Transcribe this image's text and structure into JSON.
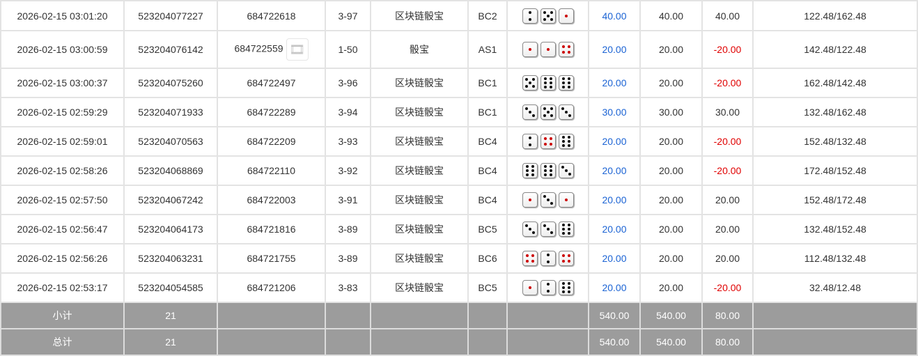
{
  "rows": [
    {
      "time": "2026-02-15 03:01:20",
      "order": "523204077227",
      "issue": "684722618",
      "odds": "3-97",
      "game": "区块链骰宝",
      "table": "BC2",
      "dice": [
        2,
        5,
        1
      ],
      "bet": "40.00",
      "valid": "40.00",
      "win": "40.00",
      "balance": "122.48/162.48",
      "has_video": false
    },
    {
      "time": "2026-02-15 03:00:59",
      "order": "523204076142",
      "issue": "684722559",
      "odds": "1-50",
      "game": "骰宝",
      "table": "AS1",
      "dice": [
        1,
        1,
        4
      ],
      "bet": "20.00",
      "valid": "20.00",
      "win": "-20.00",
      "balance": "142.48/122.48",
      "has_video": true
    },
    {
      "time": "2026-02-15 03:00:37",
      "order": "523204075260",
      "issue": "684722497",
      "odds": "3-96",
      "game": "区块链骰宝",
      "table": "BC1",
      "dice": [
        5,
        6,
        6
      ],
      "bet": "20.00",
      "valid": "20.00",
      "win": "-20.00",
      "balance": "162.48/142.48",
      "has_video": false
    },
    {
      "time": "2026-02-15 02:59:29",
      "order": "523204071933",
      "issue": "684722289",
      "odds": "3-94",
      "game": "区块链骰宝",
      "table": "BC1",
      "dice": [
        3,
        5,
        3
      ],
      "bet": "30.00",
      "valid": "30.00",
      "win": "30.00",
      "balance": "132.48/162.48",
      "has_video": false
    },
    {
      "time": "2026-02-15 02:59:01",
      "order": "523204070563",
      "issue": "684722209",
      "odds": "3-93",
      "game": "区块链骰宝",
      "table": "BC4",
      "dice": [
        2,
        4,
        6
      ],
      "bet": "20.00",
      "valid": "20.00",
      "win": "-20.00",
      "balance": "152.48/132.48",
      "has_video": false
    },
    {
      "time": "2026-02-15 02:58:26",
      "order": "523204068869",
      "issue": "684722110",
      "odds": "3-92",
      "game": "区块链骰宝",
      "table": "BC4",
      "dice": [
        6,
        6,
        3
      ],
      "bet": "20.00",
      "valid": "20.00",
      "win": "-20.00",
      "balance": "172.48/152.48",
      "has_video": false
    },
    {
      "time": "2026-02-15 02:57:50",
      "order": "523204067242",
      "issue": "684722003",
      "odds": "3-91",
      "game": "区块链骰宝",
      "table": "BC4",
      "dice": [
        1,
        3,
        1
      ],
      "bet": "20.00",
      "valid": "20.00",
      "win": "20.00",
      "balance": "152.48/172.48",
      "has_video": false
    },
    {
      "time": "2026-02-15 02:56:47",
      "order": "523204064173",
      "issue": "684721816",
      "odds": "3-89",
      "game": "区块链骰宝",
      "table": "BC5",
      "dice": [
        3,
        3,
        6
      ],
      "bet": "20.00",
      "valid": "20.00",
      "win": "20.00",
      "balance": "132.48/152.48",
      "has_video": false
    },
    {
      "time": "2026-02-15 02:56:26",
      "order": "523204063231",
      "issue": "684721755",
      "odds": "3-89",
      "game": "区块链骰宝",
      "table": "BC6",
      "dice": [
        4,
        2,
        4
      ],
      "bet": "20.00",
      "valid": "20.00",
      "win": "20.00",
      "balance": "112.48/132.48",
      "has_video": false
    },
    {
      "time": "2026-02-15 02:53:17",
      "order": "523204054585",
      "issue": "684721206",
      "odds": "3-83",
      "game": "区块链骰宝",
      "table": "BC5",
      "dice": [
        1,
        2,
        6
      ],
      "bet": "20.00",
      "valid": "20.00",
      "win": "-20.00",
      "balance": "32.48/12.48",
      "has_video": false
    }
  ],
  "summary": [
    {
      "label": "小计",
      "count": "21",
      "bet": "540.00",
      "valid": "540.00",
      "win": "80.00"
    },
    {
      "label": "总计",
      "count": "21",
      "bet": "540.00",
      "valid": "540.00",
      "win": "80.00"
    }
  ],
  "colors": {
    "bet": "#1b63d4",
    "loss": "#e00000",
    "pip_red": "#cc0000"
  }
}
